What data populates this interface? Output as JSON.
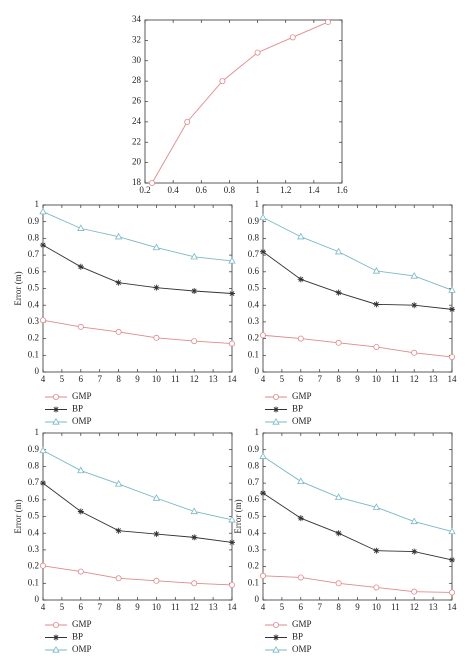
{
  "chart_data": [
    {
      "type": "line",
      "x": [
        0.25,
        0.5,
        0.75,
        1.0,
        1.25,
        1.5
      ],
      "values": [
        18,
        24,
        28,
        30.8,
        32.3,
        33.8
      ],
      "color": "#e08a8a",
      "marker": "circle",
      "xlim": [
        0.2,
        1.6
      ],
      "xticks": [
        0.2,
        0.4,
        0.6,
        0.8,
        1,
        1.2,
        1.4,
        1.6
      ],
      "ylim": [
        18,
        34
      ],
      "yticks": [
        18,
        20,
        22,
        24,
        26,
        28,
        30,
        32,
        34
      ]
    },
    {
      "type": "line",
      "y_label": "Error (m)",
      "x": [
        4,
        6,
        8,
        10,
        12,
        14
      ],
      "series": [
        {
          "name": "GMP",
          "color": "#e08a8a",
          "marker": "circle",
          "values": [
            0.31,
            0.27,
            0.24,
            0.205,
            0.185,
            0.17
          ]
        },
        {
          "name": "BP",
          "color": "#333333",
          "marker": "star",
          "values": [
            0.76,
            0.63,
            0.535,
            0.505,
            0.485,
            0.47
          ]
        },
        {
          "name": "OMP",
          "color": "#7ab8c8",
          "marker": "triangle",
          "values": [
            0.96,
            0.86,
            0.81,
            0.745,
            0.69,
            0.665
          ]
        }
      ],
      "xlim": [
        4,
        14
      ],
      "xticks": [
        4,
        5,
        6,
        7,
        8,
        9,
        10,
        11,
        12,
        13,
        14
      ],
      "ylim": [
        0,
        1
      ],
      "yticks": [
        0,
        0.1,
        0.2,
        0.3,
        0.4,
        0.5,
        0.6,
        0.7,
        0.8,
        0.9,
        1
      ]
    },
    {
      "type": "line",
      "x": [
        4,
        6,
        8,
        10,
        12,
        14
      ],
      "series": [
        {
          "name": "GMP",
          "color": "#e08a8a",
          "marker": "circle",
          "values": [
            0.22,
            0.2,
            0.175,
            0.15,
            0.115,
            0.09
          ]
        },
        {
          "name": "BP",
          "color": "#333333",
          "marker": "star",
          "values": [
            0.72,
            0.555,
            0.475,
            0.405,
            0.4,
            0.375
          ]
        },
        {
          "name": "OMP",
          "color": "#7ab8c8",
          "marker": "triangle",
          "values": [
            0.925,
            0.81,
            0.72,
            0.605,
            0.575,
            0.49
          ]
        }
      ],
      "xlim": [
        4,
        14
      ],
      "xticks": [
        4,
        5,
        6,
        7,
        8,
        9,
        10,
        11,
        12,
        13,
        14
      ],
      "ylim": [
        0,
        1
      ],
      "yticks": [
        0,
        0.1,
        0.2,
        0.3,
        0.4,
        0.5,
        0.6,
        0.7,
        0.8,
        0.9,
        1
      ]
    },
    {
      "type": "line",
      "y_label": "Error (m)",
      "x": [
        4,
        6,
        8,
        10,
        12,
        14
      ],
      "series": [
        {
          "name": "GMP",
          "color": "#e08a8a",
          "marker": "circle",
          "values": [
            0.205,
            0.17,
            0.13,
            0.115,
            0.1,
            0.09
          ]
        },
        {
          "name": "BP",
          "color": "#333333",
          "marker": "star",
          "values": [
            0.7,
            0.53,
            0.415,
            0.395,
            0.375,
            0.345
          ]
        },
        {
          "name": "OMP",
          "color": "#7ab8c8",
          "marker": "triangle",
          "values": [
            0.895,
            0.775,
            0.695,
            0.61,
            0.53,
            0.48
          ]
        }
      ],
      "xlim": [
        4,
        14
      ],
      "xticks": [
        4,
        5,
        6,
        7,
        8,
        9,
        10,
        11,
        12,
        13,
        14
      ],
      "ylim": [
        0,
        1
      ],
      "yticks": [
        0,
        0.1,
        0.2,
        0.3,
        0.4,
        0.5,
        0.6,
        0.7,
        0.8,
        0.9,
        1
      ]
    },
    {
      "type": "line",
      "y_label": "Error (m)",
      "x": [
        4,
        6,
        8,
        10,
        12,
        14
      ],
      "series": [
        {
          "name": "GMP",
          "color": "#e08a8a",
          "marker": "circle",
          "values": [
            0.145,
            0.135,
            0.1,
            0.075,
            0.05,
            0.045
          ]
        },
        {
          "name": "BP",
          "color": "#333333",
          "marker": "star",
          "values": [
            0.64,
            0.49,
            0.4,
            0.295,
            0.29,
            0.24
          ]
        },
        {
          "name": "OMP",
          "color": "#7ab8c8",
          "marker": "triangle",
          "values": [
            0.86,
            0.71,
            0.615,
            0.555,
            0.47,
            0.41
          ]
        }
      ],
      "xlim": [
        4,
        14
      ],
      "xticks": [
        4,
        5,
        6,
        7,
        8,
        9,
        10,
        11,
        12,
        13,
        14
      ],
      "ylim": [
        0,
        1
      ],
      "yticks": [
        0,
        0.1,
        0.2,
        0.3,
        0.4,
        0.5,
        0.6,
        0.7,
        0.8,
        0.9,
        1
      ]
    }
  ]
}
